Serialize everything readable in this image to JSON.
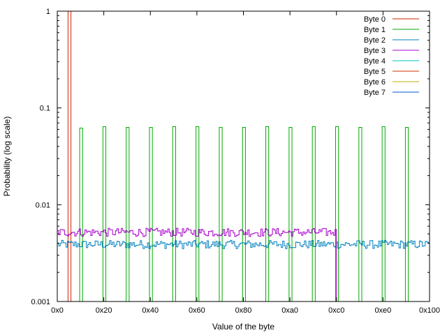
{
  "chart_data": {
    "type": "line",
    "xlabel": "Value of the byte",
    "ylabel": "Probability (log scale)",
    "xlim": [
      0,
      256
    ],
    "ylim": [
      0.001,
      1
    ],
    "yscale": "log",
    "grid": false,
    "legend_position": "top-right",
    "x_ticks": [
      {
        "value": 0,
        "label": "0x0"
      },
      {
        "value": 32,
        "label": "0x20"
      },
      {
        "value": 64,
        "label": "0x40"
      },
      {
        "value": 96,
        "label": "0x60"
      },
      {
        "value": 128,
        "label": "0x80"
      },
      {
        "value": 160,
        "label": "0xa0"
      },
      {
        "value": 192,
        "label": "0xc0"
      },
      {
        "value": 224,
        "label": "0xe0"
      },
      {
        "value": 256,
        "label": "0x100"
      }
    ],
    "y_ticks": [
      {
        "value": 0.001,
        "label": "0.001"
      },
      {
        "value": 0.01,
        "label": "0.01"
      },
      {
        "value": 0.1,
        "label": "0.1"
      },
      {
        "value": 1,
        "label": "1"
      }
    ],
    "series": [
      {
        "name": "Byte 0",
        "color": "#cc2200",
        "kind": "spikes",
        "points": [
          {
            "x": 8,
            "y": 1
          }
        ]
      },
      {
        "name": "Byte 1",
        "color": "#00aa00",
        "kind": "spikes",
        "points": [
          {
            "x": 16,
            "y": 0.062
          },
          {
            "x": 32,
            "y": 0.064
          },
          {
            "x": 48,
            "y": 0.063
          },
          {
            "x": 64,
            "y": 0.063
          },
          {
            "x": 80,
            "y": 0.064
          },
          {
            "x": 96,
            "y": 0.064
          },
          {
            "x": 112,
            "y": 0.063
          },
          {
            "x": 128,
            "y": 0.063
          },
          {
            "x": 144,
            "y": 0.064
          },
          {
            "x": 160,
            "y": 0.063
          },
          {
            "x": 176,
            "y": 0.064
          },
          {
            "x": 192,
            "y": 0.064
          },
          {
            "x": 208,
            "y": 0.063
          },
          {
            "x": 224,
            "y": 0.064
          },
          {
            "x": 240,
            "y": 0.063
          }
        ]
      },
      {
        "name": "Byte 2",
        "color": "#0080c0",
        "kind": "step",
        "x_range": [
          0,
          256
        ],
        "level": 0.0039,
        "jitter": 0.04
      },
      {
        "name": "Byte 3",
        "color": "#aa00cc",
        "kind": "step",
        "x_range": [
          0,
          192
        ],
        "level": 0.0052,
        "jitter": 0.04
      },
      {
        "name": "Byte 4",
        "color": "#00c0c0",
        "kind": "none"
      },
      {
        "name": "Byte 5",
        "color": "#cc3300",
        "kind": "none"
      },
      {
        "name": "Byte 6",
        "color": "#c0b000",
        "kind": "none"
      },
      {
        "name": "Byte 7",
        "color": "#0055cc",
        "kind": "none"
      }
    ]
  }
}
